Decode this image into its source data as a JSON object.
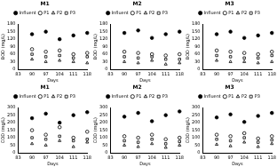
{
  "chart_data": [
    {
      "type": "scatter",
      "title": "M1",
      "x_label": "Days",
      "y_label": "BOD (mg/L)",
      "x": [
        90,
        97,
        104,
        111,
        118
      ],
      "xlim": [
        83,
        118
      ],
      "xticks": [
        83,
        90,
        97,
        104,
        111,
        118
      ],
      "ylim": [
        0,
        180
      ],
      "yticks": [
        0,
        30,
        60,
        90,
        120,
        150,
        180
      ],
      "grid": false,
      "legend": "top",
      "series": [
        {
          "name": "Influent",
          "color": "#000000",
          "marker": "filled_circle",
          "values": [
            140,
            150,
            120,
            135,
            145
          ]
        },
        {
          "name": "P1",
          "color": "#000000",
          "marker": "open_circle",
          "values": [
            80,
            70,
            75,
            60,
            65
          ]
        },
        {
          "name": "P2",
          "color": "#000000",
          "marker": "open_triangle",
          "values": [
            40,
            30,
            35,
            30,
            25
          ]
        },
        {
          "name": "P3",
          "color": "#000000",
          "marker": "open_square",
          "values": [
            60,
            50,
            55,
            45,
            50
          ]
        }
      ]
    },
    {
      "type": "scatter",
      "title": "M2",
      "x_label": "Days",
      "y_label": "BOD (mg/L)",
      "x": [
        90,
        97,
        104,
        111,
        118
      ],
      "xlim": [
        83,
        118
      ],
      "xticks": [
        83,
        90,
        97,
        104,
        111,
        118
      ],
      "ylim": [
        0,
        180
      ],
      "yticks": [
        0,
        30,
        60,
        90,
        120,
        150,
        180
      ],
      "grid": false,
      "legend": "top",
      "series": [
        {
          "name": "Influent",
          "color": "#000000",
          "marker": "filled_circle",
          "values": [
            145,
            155,
            125,
            140,
            150
          ]
        },
        {
          "name": "P1",
          "color": "#000000",
          "marker": "open_circle",
          "values": [
            70,
            65,
            60,
            55,
            60
          ]
        },
        {
          "name": "P2",
          "color": "#000000",
          "marker": "open_triangle",
          "values": [
            30,
            25,
            35,
            20,
            25
          ]
        },
        {
          "name": "P3",
          "color": "#000000",
          "marker": "open_square",
          "values": [
            50,
            45,
            50,
            40,
            40
          ]
        }
      ]
    },
    {
      "type": "scatter",
      "title": "M3",
      "x_label": "Days",
      "y_label": "BOD (mg/L)",
      "x": [
        90,
        97,
        104,
        111,
        118
      ],
      "xlim": [
        83,
        118
      ],
      "xticks": [
        83,
        90,
        97,
        104,
        111,
        118
      ],
      "ylim": [
        0,
        180
      ],
      "yticks": [
        0,
        30,
        60,
        90,
        120,
        150,
        180
      ],
      "grid": false,
      "legend": "top",
      "series": [
        {
          "name": "Influent",
          "color": "#000000",
          "marker": "filled_circle",
          "values": [
            140,
            150,
            125,
            135,
            145
          ]
        },
        {
          "name": "P1",
          "color": "#000000",
          "marker": "open_circle",
          "values": [
            75,
            70,
            65,
            60,
            70
          ]
        },
        {
          "name": "P2",
          "color": "#000000",
          "marker": "open_triangle",
          "values": [
            35,
            30,
            30,
            25,
            30
          ]
        },
        {
          "name": "P3",
          "color": "#000000",
          "marker": "open_square",
          "values": [
            55,
            50,
            45,
            45,
            55
          ]
        }
      ]
    },
    {
      "type": "scatter",
      "title": "M1",
      "x_label": "Days",
      "y_label": "COD (mg/L)",
      "x": [
        90,
        97,
        104,
        111,
        118
      ],
      "xlim": [
        83,
        118
      ],
      "xticks": [
        83,
        90,
        97,
        104,
        111,
        118
      ],
      "ylim": [
        0,
        300
      ],
      "yticks": [
        0,
        50,
        100,
        150,
        200,
        250,
        300
      ],
      "grid": false,
      "legend": "top",
      "series": [
        {
          "name": "Influent",
          "color": "#000000",
          "marker": "filled_circle",
          "values": [
            230,
            260,
            200,
            250,
            270
          ]
        },
        {
          "name": "P1",
          "color": "#000000",
          "marker": "open_circle",
          "values": [
            150,
            120,
            170,
            100,
            140
          ]
        },
        {
          "name": "P2",
          "color": "#000000",
          "marker": "open_triangle",
          "values": [
            60,
            50,
            80,
            40,
            70
          ]
        },
        {
          "name": "P3",
          "color": "#000000",
          "marker": "open_square",
          "values": [
            100,
            90,
            110,
            80,
            90
          ]
        }
      ]
    },
    {
      "type": "scatter",
      "title": "M2",
      "x_label": "Days",
      "y_label": "COD (mg/L)",
      "x": [
        90,
        97,
        104,
        111,
        118
      ],
      "xlim": [
        83,
        118
      ],
      "xticks": [
        83,
        90,
        97,
        104,
        111,
        118
      ],
      "ylim": [
        0,
        300
      ],
      "yticks": [
        0,
        50,
        100,
        150,
        200,
        250,
        300
      ],
      "grid": false,
      "legend": "top",
      "series": [
        {
          "name": "Influent",
          "color": "#000000",
          "marker": "filled_circle",
          "values": [
            240,
            265,
            210,
            250,
            275
          ]
        },
        {
          "name": "P1",
          "color": "#000000",
          "marker": "open_circle",
          "values": [
            110,
            100,
            120,
            90,
            100
          ]
        },
        {
          "name": "P2",
          "color": "#000000",
          "marker": "open_triangle",
          "values": [
            50,
            40,
            60,
            35,
            50
          ]
        },
        {
          "name": "P3",
          "color": "#000000",
          "marker": "open_square",
          "values": [
            80,
            70,
            90,
            60,
            75
          ]
        }
      ]
    },
    {
      "type": "scatter",
      "title": "M3",
      "x_label": "Days",
      "y_label": "COD (mg/L)",
      "x": [
        90,
        97,
        104,
        111,
        118
      ],
      "xlim": [
        83,
        118
      ],
      "xticks": [
        83,
        90,
        97,
        104,
        111,
        118
      ],
      "ylim": [
        0,
        300
      ],
      "yticks": [
        0,
        50,
        100,
        150,
        200,
        250,
        300
      ],
      "grid": false,
      "legend": "top",
      "series": [
        {
          "name": "Influent",
          "color": "#000000",
          "marker": "filled_circle",
          "values": [
            235,
            255,
            205,
            245,
            265
          ]
        },
        {
          "name": "P1",
          "color": "#000000",
          "marker": "open_circle",
          "values": [
            120,
            110,
            130,
            95,
            110
          ]
        },
        {
          "name": "P2",
          "color": "#000000",
          "marker": "open_triangle",
          "values": [
            55,
            45,
            70,
            40,
            60
          ]
        },
        {
          "name": "P3",
          "color": "#000000",
          "marker": "open_square",
          "values": [
            90,
            80,
            100,
            70,
            85
          ]
        }
      ]
    }
  ]
}
